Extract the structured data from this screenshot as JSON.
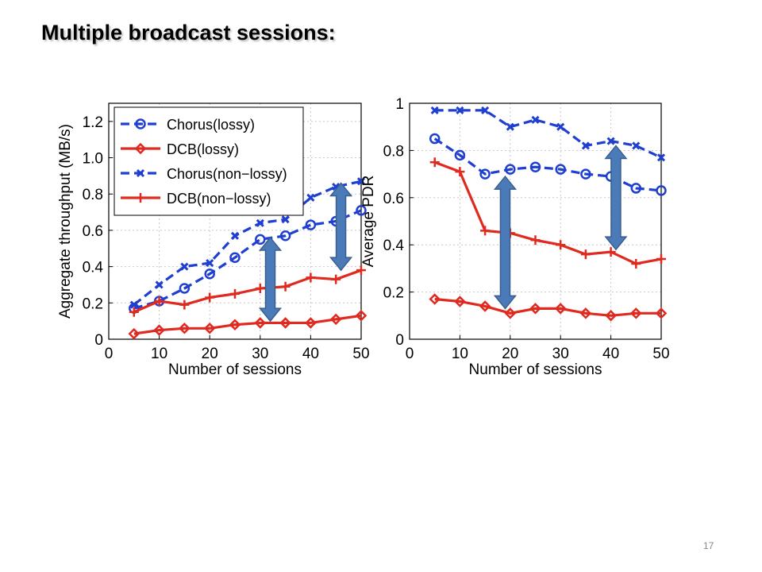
{
  "slide": {
    "title": "Multiple broadcast sessions:",
    "page_number": "17"
  },
  "colors": {
    "blue": "#1f3fd1",
    "red": "#e02a20",
    "arrow": "#4a7ab8",
    "arrow_stroke": "#3a5f8f",
    "grid": "#c8c8c8"
  },
  "chart_data": [
    {
      "type": "line",
      "xlabel": "Number of sessions",
      "ylabel": "Aggregate throughput (MB/s)",
      "xlim": [
        0,
        50
      ],
      "ylim": [
        0,
        1.3
      ],
      "xticks": [
        0,
        10,
        20,
        30,
        40,
        50
      ],
      "yticks": [
        0,
        0.2,
        0.4,
        0.6,
        0.8,
        1.0,
        1.2
      ],
      "ytick_labels": [
        "0",
        "0.2",
        "0.4",
        "0.6",
        "0.8",
        "1.0",
        "1.2"
      ],
      "grid": true,
      "legend": {
        "position": "top-left"
      },
      "x": [
        5,
        10,
        15,
        20,
        25,
        30,
        35,
        40,
        45,
        50
      ],
      "series": [
        {
          "name": "Chorus(lossy)",
          "color": "blue",
          "dash": true,
          "marker": "circle",
          "values": [
            0.17,
            0.21,
            0.28,
            0.36,
            0.45,
            0.55,
            0.57,
            0.63,
            0.65,
            0.71
          ]
        },
        {
          "name": "DCB(lossy)",
          "color": "red",
          "dash": false,
          "marker": "diamond",
          "values": [
            0.03,
            0.05,
            0.06,
            0.06,
            0.08,
            0.09,
            0.09,
            0.09,
            0.11,
            0.13
          ]
        },
        {
          "name": "Chorus(non−lossy)",
          "color": "blue",
          "dash": true,
          "marker": "x",
          "values": [
            0.19,
            0.3,
            0.4,
            0.42,
            0.57,
            0.64,
            0.66,
            0.78,
            0.84,
            0.87
          ]
        },
        {
          "name": "DCB(non−lossy)",
          "color": "red",
          "dash": false,
          "marker": "plus",
          "values": [
            0.15,
            0.21,
            0.19,
            0.23,
            0.25,
            0.28,
            0.29,
            0.34,
            0.33,
            0.38
          ]
        }
      ],
      "arrows": [
        {
          "x": 32,
          "y_from": 0.1,
          "y_to": 0.56
        },
        {
          "x": 46,
          "y_from": 0.38,
          "y_to": 0.86
        }
      ]
    },
    {
      "type": "line",
      "xlabel": "Number of sessions",
      "ylabel": "Average PDR",
      "xlim": [
        0,
        50
      ],
      "ylim": [
        0,
        1
      ],
      "xticks": [
        0,
        10,
        20,
        30,
        40,
        50
      ],
      "yticks": [
        0,
        0.2,
        0.4,
        0.6,
        0.8,
        1
      ],
      "ytick_labels": [
        "0",
        "0.2",
        "0.4",
        "0.6",
        "0.8",
        "1"
      ],
      "grid": true,
      "x": [
        5,
        10,
        15,
        20,
        25,
        30,
        35,
        40,
        45,
        50
      ],
      "series": [
        {
          "name": "Chorus(lossy)",
          "color": "blue",
          "dash": true,
          "marker": "circle",
          "values": [
            0.85,
            0.78,
            0.7,
            0.72,
            0.73,
            0.72,
            0.7,
            0.69,
            0.64,
            0.63
          ]
        },
        {
          "name": "DCB(lossy)",
          "color": "red",
          "dash": false,
          "marker": "diamond",
          "values": [
            0.17,
            0.16,
            0.14,
            0.11,
            0.13,
            0.13,
            0.11,
            0.1,
            0.11,
            0.11
          ]
        },
        {
          "name": "Chorus(non−lossy)",
          "color": "blue",
          "dash": true,
          "marker": "x",
          "values": [
            0.97,
            0.97,
            0.97,
            0.9,
            0.93,
            0.9,
            0.82,
            0.84,
            0.82,
            0.77
          ]
        },
        {
          "name": "DCB(non−lossy)",
          "color": "red",
          "dash": false,
          "marker": "plus",
          "values": [
            0.75,
            0.71,
            0.46,
            0.45,
            0.42,
            0.4,
            0.36,
            0.37,
            0.32,
            0.34
          ]
        }
      ],
      "arrows": [
        {
          "x": 19,
          "y_from": 0.13,
          "y_to": 0.69
        },
        {
          "x": 41,
          "y_from": 0.38,
          "y_to": 0.82
        }
      ]
    }
  ]
}
